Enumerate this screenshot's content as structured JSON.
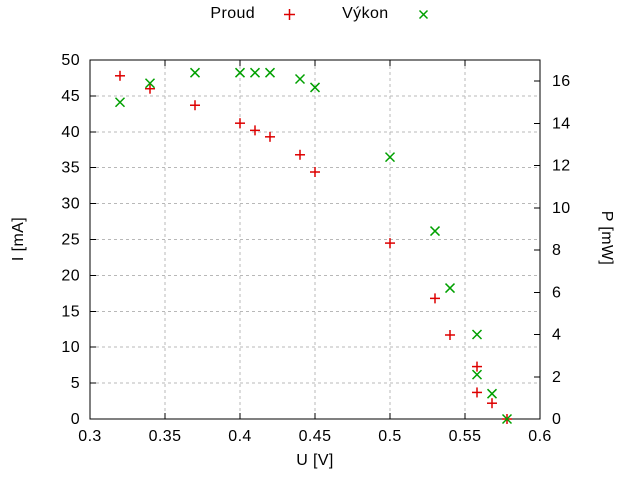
{
  "chart_data": {
    "type": "scatter",
    "title": "",
    "xlabel": "U [V]",
    "ylabel": "I [mA]",
    "y2label": "P [mW]",
    "xlim": [
      0.3,
      0.6
    ],
    "ylim": [
      0,
      50
    ],
    "y2lim": [
      0,
      17
    ],
    "grid": true,
    "legend_position": "top-center",
    "x_ticks": [
      {
        "v": 0.3,
        "label": "0.3"
      },
      {
        "v": 0.35,
        "label": "0.35"
      },
      {
        "v": 0.4,
        "label": "0.4"
      },
      {
        "v": 0.45,
        "label": "0.45"
      },
      {
        "v": 0.5,
        "label": "0.5"
      },
      {
        "v": 0.55,
        "label": "0.55"
      },
      {
        "v": 0.6,
        "label": "0.6"
      }
    ],
    "y_ticks": [
      {
        "v": 0,
        "label": "0"
      },
      {
        "v": 5,
        "label": "5"
      },
      {
        "v": 10,
        "label": "10"
      },
      {
        "v": 15,
        "label": "15"
      },
      {
        "v": 20,
        "label": "20"
      },
      {
        "v": 25,
        "label": "25"
      },
      {
        "v": 30,
        "label": "30"
      },
      {
        "v": 35,
        "label": "35"
      },
      {
        "v": 40,
        "label": "40"
      },
      {
        "v": 45,
        "label": "45"
      },
      {
        "v": 50,
        "label": "50"
      }
    ],
    "y2_ticks": [
      {
        "v": 0,
        "label": "0"
      },
      {
        "v": 2,
        "label": "2"
      },
      {
        "v": 4,
        "label": "4"
      },
      {
        "v": 6,
        "label": "6"
      },
      {
        "v": 8,
        "label": "8"
      },
      {
        "v": 10,
        "label": "10"
      },
      {
        "v": 12,
        "label": "12"
      },
      {
        "v": 14,
        "label": "14"
      },
      {
        "v": 16,
        "label": "16"
      }
    ],
    "series": [
      {
        "name": "Proud",
        "axis": "y1",
        "marker": "plus",
        "color": "#dd0000",
        "points": [
          [
            0.32,
            47.8
          ],
          [
            0.34,
            46.0
          ],
          [
            0.37,
            43.7
          ],
          [
            0.4,
            41.2
          ],
          [
            0.41,
            40.2
          ],
          [
            0.42,
            39.3
          ],
          [
            0.44,
            36.8
          ],
          [
            0.45,
            34.4
          ],
          [
            0.5,
            24.5
          ],
          [
            0.53,
            16.8
          ],
          [
            0.54,
            11.7
          ],
          [
            0.558,
            7.3
          ],
          [
            0.558,
            3.7
          ],
          [
            0.568,
            2.2
          ],
          [
            0.578,
            0.0
          ]
        ]
      },
      {
        "name": "Výkon",
        "axis": "y2",
        "marker": "cross",
        "color": "#00a000",
        "points": [
          [
            0.32,
            15.0
          ],
          [
            0.34,
            15.9
          ],
          [
            0.37,
            16.4
          ],
          [
            0.4,
            16.4
          ],
          [
            0.41,
            16.4
          ],
          [
            0.42,
            16.4
          ],
          [
            0.44,
            16.1
          ],
          [
            0.45,
            15.7
          ],
          [
            0.5,
            12.4
          ],
          [
            0.53,
            8.9
          ],
          [
            0.54,
            6.2
          ],
          [
            0.558,
            4.0
          ],
          [
            0.558,
            2.1
          ],
          [
            0.568,
            1.2
          ],
          [
            0.578,
            0.0
          ]
        ]
      }
    ],
    "colors": {
      "background": "#ffffff",
      "axis": "#000000",
      "grid": "#b8b8b8",
      "text": "#000000"
    }
  }
}
